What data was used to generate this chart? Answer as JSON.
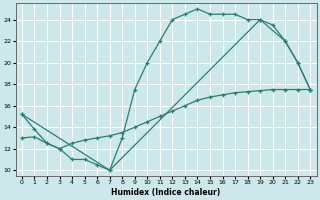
{
  "line1_x": [
    0,
    1,
    2,
    3,
    4,
    5,
    6,
    7,
    8,
    9,
    10,
    11,
    12,
    13,
    14,
    15,
    16,
    17,
    18,
    19,
    20,
    21,
    22,
    23
  ],
  "line1_y": [
    15.2,
    13.8,
    12.5,
    12.0,
    11.0,
    11.0,
    10.5,
    10.0,
    13.0,
    17.5,
    20.0,
    22.0,
    24.0,
    24.5,
    25.0,
    24.5,
    24.5,
    24.5,
    24.0,
    24.0,
    23.5,
    22.0,
    20.0,
    17.5
  ],
  "line2_x": [
    0,
    1,
    2,
    3,
    4,
    5,
    6,
    7,
    8,
    9,
    10,
    11,
    12,
    13,
    14,
    15,
    16,
    17,
    18,
    19,
    20,
    21,
    22,
    23
  ],
  "line2_y": [
    13.0,
    13.1,
    12.5,
    12.0,
    12.5,
    12.8,
    13.0,
    13.2,
    13.5,
    14.0,
    14.5,
    15.0,
    15.5,
    16.0,
    16.5,
    16.8,
    17.0,
    17.2,
    17.3,
    17.4,
    17.5,
    17.5,
    17.5,
    17.5
  ],
  "line3_x": [
    0,
    7,
    19,
    21,
    22,
    23
  ],
  "line3_y": [
    15.2,
    10.0,
    24.0,
    22.0,
    20.0,
    17.5
  ],
  "color": "#2e7d72",
  "bg_color": "#cce8ea",
  "grid_color": "#ffffff",
  "xlabel": "Humidex (Indice chaleur)",
  "xlim": [
    -0.5,
    23.5
  ],
  "ylim": [
    9.5,
    25.5
  ],
  "yticks": [
    10,
    12,
    14,
    16,
    18,
    20,
    22,
    24
  ],
  "xticks": [
    0,
    1,
    2,
    3,
    4,
    5,
    6,
    7,
    8,
    9,
    10,
    11,
    12,
    13,
    14,
    15,
    16,
    17,
    18,
    19,
    20,
    21,
    22,
    23
  ]
}
